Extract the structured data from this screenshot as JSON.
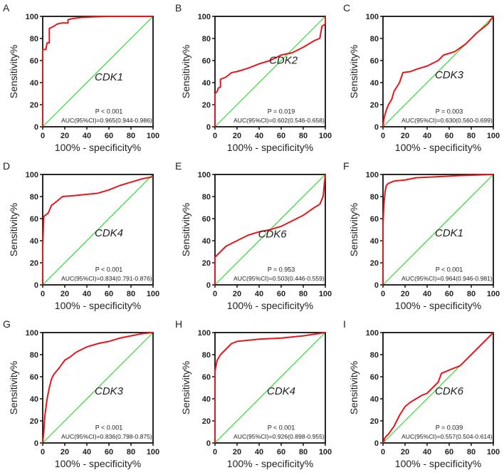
{
  "chart_data": [
    {
      "type": "line",
      "panel": "A",
      "gene": "CDK1",
      "p_text": "P < 0.001",
      "auc_text": "AUC(95%CI)=0.965(0.944-0.986)",
      "xlabel": "100% - specificity%",
      "ylabel": "Sensitivity%",
      "xlim": [
        0,
        100
      ],
      "ylim": [
        0,
        100
      ],
      "ticks": [
        0,
        20,
        40,
        60,
        80,
        100
      ],
      "roc": [
        [
          0,
          0
        ],
        [
          0,
          70
        ],
        [
          3,
          70
        ],
        [
          3,
          71
        ],
        [
          4,
          76
        ],
        [
          6,
          76
        ],
        [
          6,
          89
        ],
        [
          8,
          90
        ],
        [
          10,
          91
        ],
        [
          13,
          93
        ],
        [
          17,
          94
        ],
        [
          23,
          94
        ],
        [
          23,
          97
        ],
        [
          27,
          98
        ],
        [
          35,
          99
        ],
        [
          45,
          99.5
        ],
        [
          60,
          100
        ],
        [
          100,
          100
        ]
      ]
    },
    {
      "type": "line",
      "panel": "B",
      "gene": "CDK2",
      "p_text": "P = 0.019",
      "auc_text": "AUC(95%CI)=0.602(0.546-0.658)",
      "xlabel": "100% - specificity%",
      "ylabel": "Sensitivity%",
      "xlim": [
        0,
        100
      ],
      "ylim": [
        0,
        100
      ],
      "ticks": [
        0,
        20,
        40,
        60,
        80,
        100
      ],
      "roc": [
        [
          0,
          0
        ],
        [
          0,
          30
        ],
        [
          2,
          32
        ],
        [
          3,
          35
        ],
        [
          5,
          36
        ],
        [
          5,
          43
        ],
        [
          10,
          45
        ],
        [
          15,
          49
        ],
        [
          20,
          50
        ],
        [
          30,
          53
        ],
        [
          40,
          57
        ],
        [
          50,
          60
        ],
        [
          60,
          65
        ],
        [
          70,
          67
        ],
        [
          80,
          72
        ],
        [
          90,
          78
        ],
        [
          95,
          80
        ],
        [
          97,
          91
        ],
        [
          100,
          93
        ],
        [
          100,
          100
        ]
      ]
    },
    {
      "type": "line",
      "panel": "C",
      "gene": "CDK3",
      "p_text": "P = 0.003",
      "auc_text": "AUC(95%CI)=0.630(0.560-0.699)",
      "xlabel": "100% - specificity%",
      "ylabel": "Sensitivity%",
      "xlim": [
        0,
        100
      ],
      "ylim": [
        0,
        100
      ],
      "ticks": [
        0,
        20,
        40,
        60,
        80,
        100
      ],
      "roc": [
        [
          0,
          0
        ],
        [
          1,
          8
        ],
        [
          3,
          15
        ],
        [
          5,
          20
        ],
        [
          8,
          25
        ],
        [
          10,
          32
        ],
        [
          15,
          40
        ],
        [
          18,
          49
        ],
        [
          25,
          50
        ],
        [
          30,
          52
        ],
        [
          40,
          55
        ],
        [
          50,
          60
        ],
        [
          55,
          65
        ],
        [
          65,
          68
        ],
        [
          75,
          75
        ],
        [
          85,
          85
        ],
        [
          95,
          93
        ],
        [
          100,
          100
        ]
      ]
    },
    {
      "type": "line",
      "panel": "D",
      "gene": "CDK4",
      "p_text": "P < 0.001",
      "auc_text": "AUC(95%CI)=0.834(0.791-0.876)",
      "xlabel": "100% - specificity%",
      "ylabel": "Sensitivity%",
      "xlim": [
        0,
        100
      ],
      "ylim": [
        0,
        100
      ],
      "ticks": [
        0,
        20,
        40,
        60,
        80,
        100
      ],
      "roc": [
        [
          0,
          0
        ],
        [
          0,
          35
        ],
        [
          1,
          62
        ],
        [
          5,
          65
        ],
        [
          8,
          72
        ],
        [
          12,
          75
        ],
        [
          18,
          80
        ],
        [
          30,
          81
        ],
        [
          40,
          82
        ],
        [
          50,
          83
        ],
        [
          60,
          86
        ],
        [
          70,
          90
        ],
        [
          80,
          93
        ],
        [
          90,
          96
        ],
        [
          100,
          98
        ]
      ]
    },
    {
      "type": "line",
      "panel": "E",
      "gene": "CDK6",
      "p_text": "P = 0.953",
      "auc_text": "AUC(95%CI)=0.503(0.446-0.559)",
      "xlabel": "100% - specificity%",
      "ylabel": "Sensitivity%",
      "xlim": [
        0,
        100
      ],
      "ylim": [
        0,
        100
      ],
      "ticks": [
        0,
        20,
        40,
        60,
        80,
        100
      ],
      "roc": [
        [
          0,
          0
        ],
        [
          0,
          25
        ],
        [
          5,
          30
        ],
        [
          10,
          35
        ],
        [
          20,
          40
        ],
        [
          30,
          45
        ],
        [
          40,
          48
        ],
        [
          50,
          50
        ],
        [
          60,
          53
        ],
        [
          70,
          58
        ],
        [
          80,
          63
        ],
        [
          90,
          70
        ],
        [
          95,
          73
        ],
        [
          98,
          80
        ],
        [
          100,
          100
        ]
      ]
    },
    {
      "type": "line",
      "panel": "F",
      "gene": "CDK1",
      "p_text": "P < 0.001",
      "auc_text": "AUC(95%CI)=0.964(0.946-0.981)",
      "xlabel": "100% - specificity%",
      "ylabel": "Sensitivity%",
      "xlim": [
        0,
        100
      ],
      "ylim": [
        0,
        100
      ],
      "ticks": [
        0,
        20,
        40,
        60,
        80,
        100
      ],
      "roc": [
        [
          0,
          0
        ],
        [
          0,
          55
        ],
        [
          1,
          75
        ],
        [
          2,
          85
        ],
        [
          3,
          90
        ],
        [
          5,
          92
        ],
        [
          10,
          94
        ],
        [
          20,
          95
        ],
        [
          30,
          97
        ],
        [
          50,
          98
        ],
        [
          70,
          99
        ],
        [
          100,
          100
        ]
      ]
    },
    {
      "type": "line",
      "panel": "G",
      "gene": "CDK3",
      "p_text": "P < 0.001",
      "auc_text": "AUC(95%CI)=0.836(0.798-0.875)",
      "xlabel": "100% - specificity%",
      "ylabel": "Sensitivity%",
      "xlim": [
        0,
        100
      ],
      "ylim": [
        0,
        100
      ],
      "ticks": [
        0,
        20,
        40,
        60,
        80,
        100
      ],
      "roc": [
        [
          0,
          0
        ],
        [
          1,
          10
        ],
        [
          2,
          25
        ],
        [
          4,
          40
        ],
        [
          6,
          50
        ],
        [
          8,
          58
        ],
        [
          10,
          62
        ],
        [
          15,
          68
        ],
        [
          20,
          75
        ],
        [
          25,
          78
        ],
        [
          30,
          82
        ],
        [
          40,
          87
        ],
        [
          50,
          90
        ],
        [
          60,
          92
        ],
        [
          70,
          95
        ],
        [
          80,
          97
        ],
        [
          90,
          99
        ],
        [
          100,
          100
        ]
      ]
    },
    {
      "type": "line",
      "panel": "H",
      "gene": "CDK4",
      "p_text": "P < 0.001",
      "auc_text": "AUC(95%CI)=0.926(0.898-0.955)",
      "xlabel": "100% - specificity%",
      "ylabel": "Sensitivity%",
      "xlim": [
        0,
        100
      ],
      "ylim": [
        0,
        100
      ],
      "ticks": [
        0,
        20,
        40,
        60,
        80,
        100
      ],
      "roc": [
        [
          0,
          0
        ],
        [
          0,
          65
        ],
        [
          2,
          75
        ],
        [
          5,
          80
        ],
        [
          10,
          85
        ],
        [
          15,
          90
        ],
        [
          20,
          92
        ],
        [
          30,
          93
        ],
        [
          40,
          94
        ],
        [
          60,
          95
        ],
        [
          80,
          97
        ],
        [
          100,
          100
        ]
      ]
    },
    {
      "type": "line",
      "panel": "I",
      "gene": "CDK6",
      "p_text": "P = 0.039",
      "auc_text": "AUC(95%CI)=0.557(0.504-0.614)",
      "xlabel": "100% - specificity%",
      "ylabel": "Sensitivity%",
      "xlim": [
        0,
        100
      ],
      "ylim": [
        0,
        100
      ],
      "ticks": [
        0,
        20,
        40,
        60,
        80,
        100
      ],
      "roc": [
        [
          0,
          0
        ],
        [
          2,
          5
        ],
        [
          5,
          8
        ],
        [
          10,
          15
        ],
        [
          15,
          25
        ],
        [
          20,
          33
        ],
        [
          25,
          37
        ],
        [
          30,
          40
        ],
        [
          35,
          43
        ],
        [
          40,
          45
        ],
        [
          45,
          50
        ],
        [
          50,
          55
        ],
        [
          53,
          63
        ],
        [
          60,
          66
        ],
        [
          70,
          70
        ],
        [
          80,
          80
        ],
        [
          90,
          90
        ],
        [
          100,
          100
        ]
      ]
    }
  ],
  "colors": {
    "roc": "#e8161b",
    "reference": "#35d535",
    "axis": "#111111"
  }
}
